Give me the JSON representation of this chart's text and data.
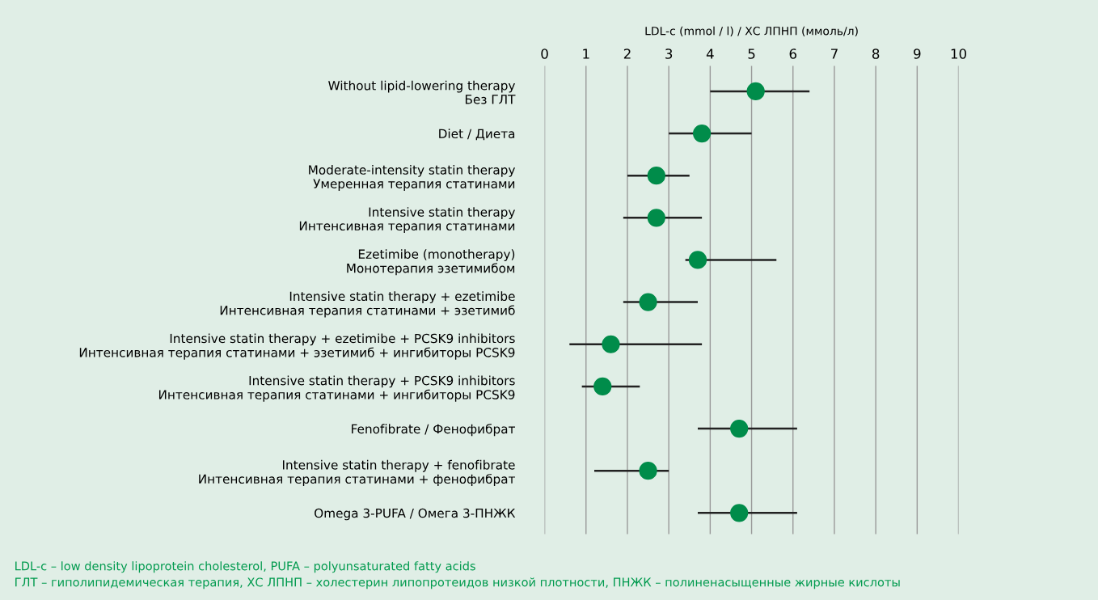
{
  "chart_data": {
    "type": "scatter",
    "xlabel": "LDL-c (mmol / l) / ХС ЛПНП (ммоль/л)",
    "categories": [
      "Without lipid-lowering therapy\nБез ГЛТ",
      "Diet / Диета",
      "Moderate-intensity statin therapy\nУмеренная терапия статинами",
      "Intensive statin therapy\nИнтенсивная терапия статинами",
      "Ezetimibe (monotherapy)\nМонотерапия эзетимибом",
      "Intensive statin therapy + ezetimibe\nИнтенсивная терапия статинами + эзетимиб",
      "Intensive statin therapy + ezetimibe + PCSK9 inhibitors\nИнтенсивная терапия статинами + эзетимиб + ингибиторы PCSK9",
      "Intensive statin therapy + PCSK9 inhibitors\nИнтенсивная терапия статинами + ингибиторы PCSK9",
      "Fenofibrate / Фенофибрат",
      "Intensive statin therapy + fenofibrate\nИнтенсивная терапия статинами + фенофибрат",
      "Omega 3-PUFA / Омега 3-ПНЖК"
    ],
    "orientation": "horizontal",
    "color": "#008c4a",
    "values": [
      5.1,
      3.8,
      2.7,
      2.7,
      3.7,
      2.5,
      1.6,
      1.4,
      4.7,
      2.5,
      4.7
    ],
    "errors": [
      [
        4.0,
        6.4
      ],
      [
        3.0,
        5.0
      ],
      [
        2.0,
        3.5
      ],
      [
        1.9,
        3.8
      ],
      [
        3.4,
        5.6
      ],
      [
        1.9,
        3.7
      ],
      [
        0.6,
        3.8
      ],
      [
        0.9,
        2.3
      ],
      [
        3.7,
        6.1
      ],
      [
        1.2,
        3.0
      ],
      [
        3.7,
        6.1
      ]
    ],
    "xlim": [
      0,
      10
    ],
    "xticks": [
      0,
      1,
      2,
      3,
      4,
      5,
      6,
      7,
      8,
      9,
      10
    ],
    "grid": "x",
    "marker": "circle",
    "annotations": [
      "LDL-c – low density lipoprotein cholesterol, PUFA – polyunsaturated fatty acids",
      "ГЛТ – гиполипидемическая терапия, ХС ЛПНП – холестерин липопротеидов низкой плотности, ПНЖК – полиненасыщенные жирные кислоты"
    ]
  }
}
